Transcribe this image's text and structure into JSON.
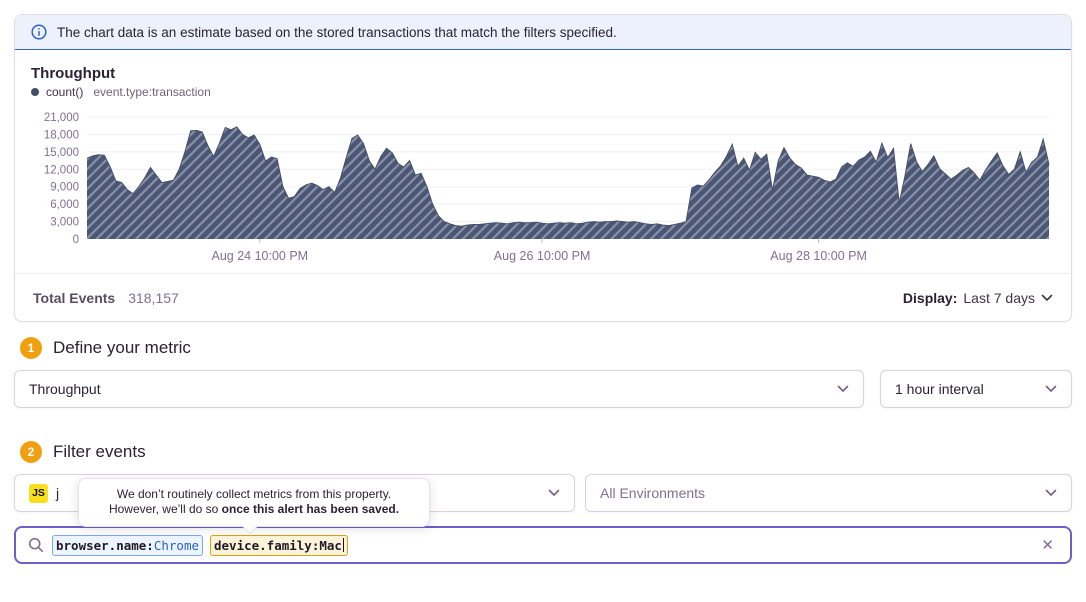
{
  "banner": {
    "text": "The chart data is an estimate based on the stored transactions that match the filters specified."
  },
  "chart_panel": {
    "title": "Throughput",
    "legend": {
      "series_label": "count()",
      "filter_label": "event.type:transaction"
    },
    "footer": {
      "total_label": "Total Events",
      "total_value": "318,157",
      "display_label": "Display:",
      "display_value": "Last 7 days"
    }
  },
  "chart_data": {
    "type": "area",
    "title": "Throughput",
    "interval": "1 hour",
    "ylim": [
      0,
      21000
    ],
    "y_ticks": [
      0,
      3000,
      6000,
      9000,
      12000,
      15000,
      18000,
      21000
    ],
    "x_ticks": [
      {
        "label": "Aug 24 10:00 PM",
        "index": 30
      },
      {
        "label": "Aug 26 10:00 PM",
        "index": 79
      },
      {
        "label": "Aug 28 10:00 PM",
        "index": 127
      }
    ],
    "grid": true,
    "legend_position": "top-left",
    "pattern": "diagonal-hatch",
    "colors": {
      "fill": "#4a5675",
      "stripe": "rgba(255,255,255,0.35)",
      "edge": "#465068",
      "grid": "#f0eef2",
      "label": "#80708f",
      "tick": "#bdb7c6"
    },
    "series": [
      {
        "name": "count() event.type:transaction",
        "values": [
          13900,
          14300,
          14500,
          14400,
          12500,
          10000,
          9700,
          8500,
          7800,
          9000,
          10500,
          12300,
          11000,
          9700,
          9900,
          10100,
          12000,
          15000,
          18600,
          18700,
          18400,
          16000,
          14200,
          16500,
          19200,
          18800,
          19300,
          18000,
          17400,
          17900,
          16300,
          13400,
          14100,
          13800,
          9000,
          7000,
          7300,
          8700,
          9300,
          9600,
          9200,
          8500,
          9000,
          8000,
          10500,
          14000,
          17300,
          17900,
          16400,
          13500,
          12000,
          14200,
          15600,
          14800,
          13000,
          12400,
          13500,
          11000,
          11300,
          9000,
          6000,
          4000,
          3000,
          2600,
          2300,
          2200,
          2400,
          2500,
          2500,
          2600,
          2700,
          2800,
          2700,
          2600,
          2800,
          2900,
          2800,
          2800,
          2900,
          2700,
          2600,
          2700,
          2800,
          2700,
          2800,
          2600,
          2700,
          2900,
          3000,
          2900,
          3000,
          3000,
          3100,
          3000,
          2900,
          3000,
          2800,
          2600,
          2500,
          2600,
          2400,
          2300,
          2500,
          2700,
          3000,
          8800,
          9300,
          9100,
          10200,
          11500,
          12600,
          14200,
          16300,
          12500,
          13900,
          11800,
          14900,
          13700,
          14600,
          8400,
          13500,
          15700,
          13900,
          12800,
          12200,
          11000,
          10800,
          10600,
          10100,
          9800,
          10300,
          12400,
          13100,
          12500,
          13600,
          14100,
          15100,
          13200,
          16500,
          14000,
          15600,
          6200,
          10900,
          16400,
          13300,
          11600,
          12800,
          14300,
          12100,
          11200,
          10300,
          11000,
          11800,
          12300,
          11400,
          10100,
          11900,
          13400,
          14800,
          12600,
          11100,
          12000,
          15000,
          11500,
          13200,
          14100,
          17200,
          12800
        ]
      }
    ]
  },
  "sections": {
    "metric": {
      "step": "1",
      "title": "Define your metric",
      "metric_select": "Throughput",
      "interval_select": "1 hour interval"
    },
    "filter": {
      "step": "2",
      "title": "Filter events",
      "project_badge": "JS",
      "project_label": "j",
      "environment_select": "All Environments"
    }
  },
  "tooltip": {
    "line1": "We don’t routinely collect metrics from this property.",
    "line2_regular": "However, we’ll do so ",
    "line2_bold": "once this alert has been saved."
  },
  "search": {
    "tokens": [
      {
        "key": "browser.name:",
        "value": "Chrome"
      },
      {
        "key": "device.family:",
        "value": "Mac"
      }
    ],
    "clear_icon": "✕"
  }
}
